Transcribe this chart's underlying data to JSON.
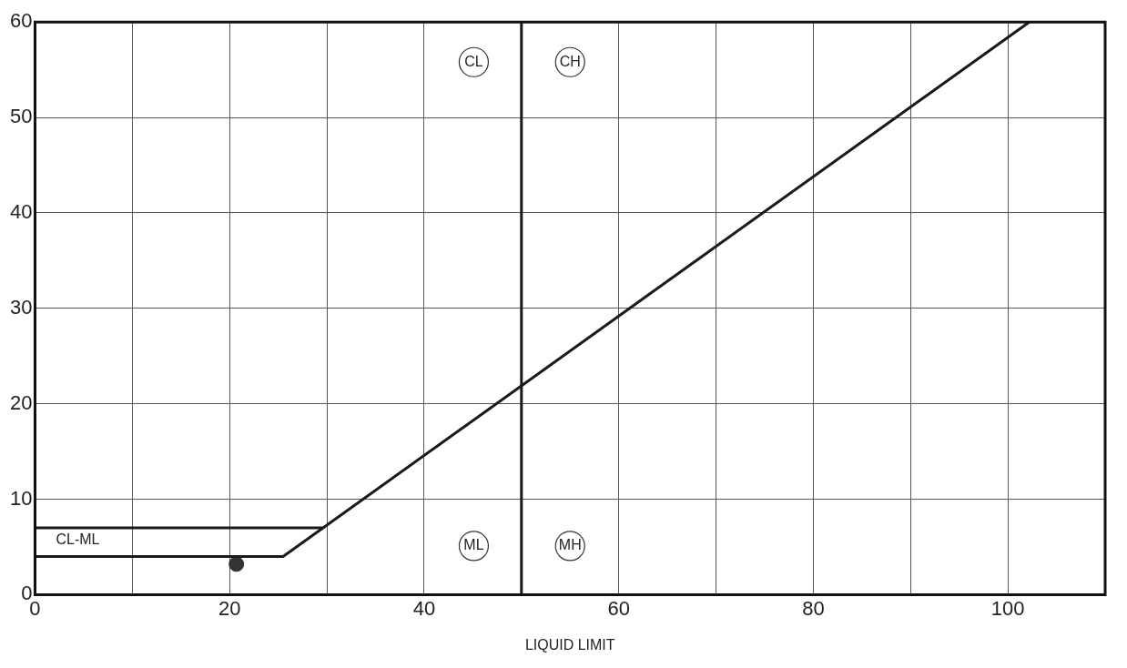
{
  "chart_data": {
    "type": "line",
    "xlabel": "LIQUID LIMIT",
    "xlim": [
      0,
      110
    ],
    "ylim": [
      0,
      60
    ],
    "xticks": [
      0,
      {
        "value": 10,
        "label": null
      },
      20,
      {
        "value": 30,
        "label": null
      },
      40,
      {
        "value": 50,
        "label": null
      },
      60,
      {
        "value": 70,
        "label": null
      },
      80,
      {
        "value": 90,
        "label": null
      },
      100,
      {
        "value": 110,
        "label": null
      }
    ],
    "yticks": [
      0,
      10,
      20,
      30,
      40,
      50,
      60
    ],
    "grid": true,
    "legend": false,
    "line_style": "solid",
    "marker": "none",
    "series": [
      {
        "color": "#1a1a1a",
        "x": [
          0,
          25.5,
          102.2
        ],
        "values": [
          4,
          4,
          60
        ]
      },
      {
        "color": "#1a1a1a",
        "x": [
          0,
          29.6
        ],
        "values": [
          7,
          7
        ]
      },
      {
        "type": "scatter",
        "marker": "circle",
        "color": "#333333",
        "x": [
          20.7
        ],
        "values": [
          3.2
        ]
      }
    ],
    "ref_lines": [
      {
        "axis": "x",
        "value": 50,
        "label": null,
        "color": "#1a1a1a"
      }
    ],
    "annotations": [
      "CL",
      "CH",
      "ML",
      "MH",
      "CL-ML"
    ]
  }
}
